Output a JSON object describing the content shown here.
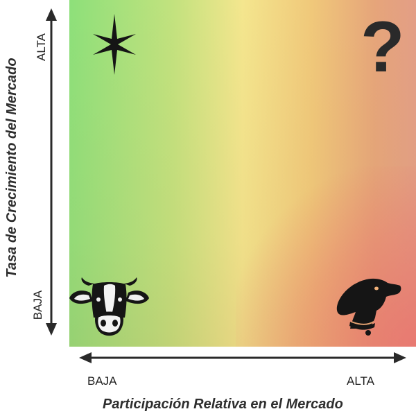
{
  "x_axis": {
    "title": "Participación Relativa en el Mercado",
    "low": "BAJA",
    "high": "ALTA"
  },
  "y_axis": {
    "title": "Tasa de Crecimiento del Mercado",
    "low": "BAJA",
    "high": "ALTA"
  },
  "quadrants": {
    "top_left": {
      "icon": "star-icon"
    },
    "top_right": {
      "icon": "question-mark-icon",
      "glyph": "?"
    },
    "bottom_left": {
      "icon": "cow-icon"
    },
    "bottom_right": {
      "icon": "dog-icon"
    }
  },
  "colors": {
    "green": "#8de07a",
    "yellow": "#f4e68e",
    "orange": "#e6a57a",
    "red": "#ec6e6e",
    "ink": "#1a1a1a"
  }
}
